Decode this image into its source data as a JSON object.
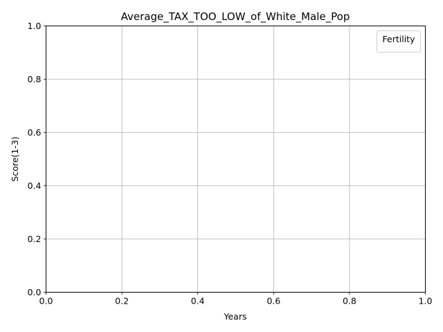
{
  "chart_data": {
    "type": "line",
    "title": "Average_TAX_TOO_LOW_of_White_Male_Pop",
    "xlabel": "Years",
    "ylabel": "Score(1-3)",
    "xlim": [
      0.0,
      1.0
    ],
    "ylim": [
      0.0,
      1.0
    ],
    "x_ticks": [
      "0.0",
      "0.2",
      "0.4",
      "0.6",
      "0.8",
      "1.0"
    ],
    "y_ticks": [
      "0.0",
      "0.2",
      "0.4",
      "0.6",
      "0.8",
      "1.0"
    ],
    "grid": true,
    "legend": {
      "title": "Fertility",
      "location": "top-right",
      "entries": []
    },
    "series": []
  }
}
